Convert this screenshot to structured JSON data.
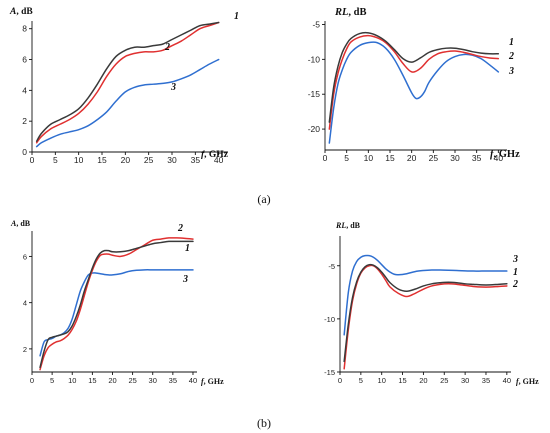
{
  "panel_labels": {
    "a": "(a)",
    "b": "(b)"
  },
  "chart_data": [
    {
      "id": "a-left",
      "type": "line",
      "ylabel_var": "A",
      "ylabel_unit": ", dB",
      "xlabel_var": "f",
      "xlabel_unit": ", GHz",
      "xlim": [
        0,
        42
      ],
      "ylim": [
        0,
        8.5
      ],
      "xticks": [
        0,
        5,
        10,
        15,
        20,
        25,
        30,
        35,
        40
      ],
      "yticks": [
        0,
        2,
        4,
        6,
        8
      ],
      "colors": [
        "#3a3a3a",
        "#e03030",
        "#2f6fd0"
      ],
      "series": [
        {
          "name": "1",
          "x": [
            1,
            2,
            4,
            6,
            8,
            10,
            12,
            14,
            16,
            18,
            20,
            22,
            24,
            26,
            28,
            30,
            32,
            34,
            36,
            38,
            40
          ],
          "y": [
            0.7,
            1.2,
            1.8,
            2.1,
            2.4,
            2.8,
            3.5,
            4.4,
            5.4,
            6.2,
            6.6,
            6.8,
            6.8,
            6.9,
            7.0,
            7.3,
            7.6,
            7.9,
            8.2,
            8.3,
            8.4
          ]
        },
        {
          "name": "2",
          "x": [
            1,
            2,
            4,
            6,
            8,
            10,
            12,
            14,
            16,
            18,
            20,
            22,
            24,
            26,
            28,
            30,
            32,
            34,
            36,
            38,
            40
          ],
          "y": [
            0.6,
            1.0,
            1.5,
            1.8,
            2.1,
            2.5,
            3.1,
            3.9,
            4.9,
            5.7,
            6.2,
            6.4,
            6.5,
            6.5,
            6.6,
            6.9,
            7.2,
            7.6,
            8.0,
            8.2,
            8.4
          ]
        },
        {
          "name": "3",
          "x": [
            1,
            2,
            4,
            6,
            8,
            10,
            12,
            14,
            16,
            18,
            20,
            22,
            24,
            26,
            28,
            30,
            32,
            34,
            36,
            38,
            40
          ],
          "y": [
            0.35,
            0.6,
            0.9,
            1.15,
            1.3,
            1.45,
            1.7,
            2.1,
            2.6,
            3.3,
            3.9,
            4.2,
            4.35,
            4.4,
            4.45,
            4.55,
            4.75,
            5.0,
            5.35,
            5.7,
            6.0
          ]
        }
      ],
      "labels_at": [
        "1",
        "2",
        "3"
      ]
    },
    {
      "id": "a-right",
      "type": "line",
      "ylabel_var": "RL",
      "ylabel_unit": ", dB",
      "xlabel_var": "f",
      "xlabel_unit": ", GHz",
      "xlim": [
        0,
        42
      ],
      "ylim": [
        -23,
        -4.5
      ],
      "xticks": [
        0,
        5,
        10,
        15,
        20,
        25,
        30,
        35,
        40
      ],
      "yticks": [
        -20,
        -15,
        -10,
        -5
      ],
      "colors": [
        "#3a3a3a",
        "#e03030",
        "#2f6fd0"
      ],
      "series": [
        {
          "name": "1",
          "x": [
            1,
            2,
            3,
            4,
            5,
            6,
            8,
            10,
            12,
            14,
            16,
            18,
            20,
            22,
            24,
            26,
            28,
            30,
            32,
            34,
            36,
            38,
            40
          ],
          "y": [
            -19.0,
            -14.0,
            -11.0,
            -9.0,
            -7.8,
            -7.0,
            -6.3,
            -6.2,
            -6.6,
            -7.4,
            -8.6,
            -9.9,
            -10.4,
            -9.8,
            -9.0,
            -8.6,
            -8.4,
            -8.4,
            -8.6,
            -8.9,
            -9.1,
            -9.2,
            -9.2
          ]
        },
        {
          "name": "2",
          "x": [
            1,
            2,
            3,
            4,
            5,
            6,
            8,
            10,
            12,
            14,
            16,
            18,
            20,
            22,
            24,
            26,
            28,
            30,
            32,
            34,
            36,
            38,
            40
          ],
          "y": [
            -20.0,
            -15.0,
            -12.0,
            -10.0,
            -8.5,
            -7.5,
            -6.8,
            -6.6,
            -6.9,
            -7.6,
            -8.9,
            -10.6,
            -11.8,
            -11.3,
            -10.0,
            -9.2,
            -8.9,
            -8.8,
            -9.0,
            -9.3,
            -9.6,
            -9.8,
            -9.9
          ]
        },
        {
          "name": "3",
          "x": [
            1,
            2,
            3,
            4,
            5,
            6,
            8,
            10,
            12,
            14,
            16,
            18,
            20,
            21,
            22,
            23,
            24,
            26,
            28,
            30,
            32,
            34,
            36,
            38,
            40
          ],
          "y": [
            -22.0,
            -17.0,
            -13.5,
            -11.5,
            -10.0,
            -9.0,
            -8.0,
            -7.6,
            -7.6,
            -8.4,
            -10.0,
            -12.3,
            -14.8,
            -15.6,
            -15.4,
            -14.6,
            -13.3,
            -11.6,
            -10.3,
            -9.6,
            -9.3,
            -9.4,
            -9.9,
            -10.8,
            -11.8
          ]
        }
      ],
      "labels_at": [
        "1",
        "2",
        "3"
      ]
    },
    {
      "id": "b-left",
      "type": "line",
      "ylabel_var": "A",
      "ylabel_unit": ", dB",
      "xlabel_var": "f",
      "xlabel_unit": ", GHz",
      "xlim": [
        0,
        41
      ],
      "ylim": [
        1,
        7.1
      ],
      "xticks": [
        0,
        5,
        10,
        15,
        20,
        25,
        30,
        35,
        40
      ],
      "yticks": [
        2,
        4,
        6
      ],
      "colors": [
        "#3a3a3a",
        "#e03030",
        "#2f6fd0"
      ],
      "series": [
        {
          "name": "1",
          "x": [
            2,
            3,
            4,
            5,
            6,
            7,
            8,
            9,
            10,
            11,
            12,
            13,
            14,
            15,
            16,
            17,
            18,
            19,
            20,
            22,
            24,
            26,
            28,
            30,
            32,
            34,
            36,
            38,
            40
          ],
          "y": [
            1.2,
            1.9,
            2.4,
            2.5,
            2.55,
            2.6,
            2.65,
            2.75,
            3.0,
            3.4,
            3.9,
            4.5,
            5.0,
            5.5,
            5.9,
            6.15,
            6.25,
            6.25,
            6.2,
            6.2,
            6.25,
            6.35,
            6.45,
            6.55,
            6.6,
            6.65,
            6.65,
            6.65,
            6.65
          ]
        },
        {
          "name": "2",
          "x": [
            2,
            3,
            4,
            5,
            6,
            7,
            8,
            9,
            10,
            11,
            12,
            13,
            14,
            15,
            16,
            17,
            18,
            19,
            20,
            22,
            24,
            26,
            28,
            30,
            32,
            34,
            36,
            38,
            40
          ],
          "y": [
            1.1,
            1.7,
            2.05,
            2.2,
            2.3,
            2.35,
            2.45,
            2.6,
            2.85,
            3.2,
            3.7,
            4.3,
            4.9,
            5.4,
            5.8,
            6.05,
            6.1,
            6.1,
            6.05,
            6.0,
            6.1,
            6.3,
            6.5,
            6.7,
            6.75,
            6.8,
            6.8,
            6.78,
            6.75
          ]
        },
        {
          "name": "3",
          "x": [
            2,
            3,
            4,
            5,
            6,
            7,
            8,
            9,
            10,
            11,
            12,
            13,
            14,
            15,
            16,
            17,
            18,
            19,
            20,
            22,
            24,
            26,
            28,
            30,
            32,
            34,
            36,
            38,
            40
          ],
          "y": [
            1.7,
            2.3,
            2.4,
            2.45,
            2.55,
            2.6,
            2.7,
            2.9,
            3.3,
            3.9,
            4.5,
            4.9,
            5.2,
            5.28,
            5.28,
            5.25,
            5.22,
            5.2,
            5.2,
            5.25,
            5.35,
            5.4,
            5.42,
            5.42,
            5.42,
            5.42,
            5.42,
            5.42,
            5.42
          ]
        }
      ],
      "labels_at": [
        "2",
        "1",
        "3"
      ]
    },
    {
      "id": "b-right",
      "type": "line",
      "ylabel_var": "RL",
      "ylabel_unit": ", dB",
      "xlabel_var": "f",
      "xlabel_unit": ", GHz",
      "xlim": [
        0,
        41
      ],
      "ylim": [
        -15,
        -2.2
      ],
      "xticks": [
        0,
        5,
        10,
        15,
        20,
        25,
        30,
        35,
        40
      ],
      "yticks": [
        -15,
        -10,
        -5
      ],
      "colors": [
        "#3a3a3a",
        "#e03030",
        "#2f6fd0"
      ],
      "series": [
        {
          "name": "1",
          "x": [
            1,
            2,
            3,
            4,
            5,
            6,
            7,
            8,
            9,
            10,
            11,
            12,
            14,
            16,
            18,
            20,
            22,
            24,
            26,
            28,
            30,
            32,
            34,
            36,
            38,
            40
          ],
          "y": [
            -14.0,
            -10.5,
            -8.0,
            -6.5,
            -5.6,
            -5.1,
            -4.9,
            -4.95,
            -5.2,
            -5.6,
            -6.1,
            -6.6,
            -7.2,
            -7.4,
            -7.2,
            -6.9,
            -6.7,
            -6.6,
            -6.55,
            -6.6,
            -6.7,
            -6.75,
            -6.8,
            -6.8,
            -6.75,
            -6.7
          ]
        },
        {
          "name": "2",
          "x": [
            1,
            2,
            3,
            4,
            5,
            6,
            7,
            8,
            9,
            10,
            11,
            12,
            14,
            16,
            18,
            20,
            22,
            24,
            26,
            28,
            30,
            32,
            34,
            36,
            38,
            40
          ],
          "y": [
            -14.7,
            -11.0,
            -8.3,
            -6.7,
            -5.7,
            -5.2,
            -5.0,
            -5.0,
            -5.3,
            -5.8,
            -6.4,
            -7.0,
            -7.6,
            -7.9,
            -7.6,
            -7.2,
            -6.9,
            -6.75,
            -6.7,
            -6.75,
            -6.85,
            -6.95,
            -7.0,
            -7.0,
            -6.95,
            -6.9
          ]
        },
        {
          "name": "3",
          "x": [
            1,
            2,
            3,
            4,
            5,
            6,
            7,
            8,
            9,
            10,
            11,
            12,
            13,
            14,
            16,
            18,
            20,
            22,
            24,
            26,
            28,
            30,
            32,
            34,
            36,
            38,
            40
          ],
          "y": [
            -11.5,
            -7.5,
            -5.5,
            -4.6,
            -4.2,
            -4.05,
            -4.05,
            -4.2,
            -4.5,
            -4.9,
            -5.3,
            -5.6,
            -5.8,
            -5.85,
            -5.75,
            -5.55,
            -5.45,
            -5.4,
            -5.4,
            -5.42,
            -5.45,
            -5.48,
            -5.5,
            -5.5,
            -5.5,
            -5.5,
            -5.5
          ]
        }
      ],
      "labels_at": [
        "3",
        "1",
        "2"
      ]
    }
  ]
}
